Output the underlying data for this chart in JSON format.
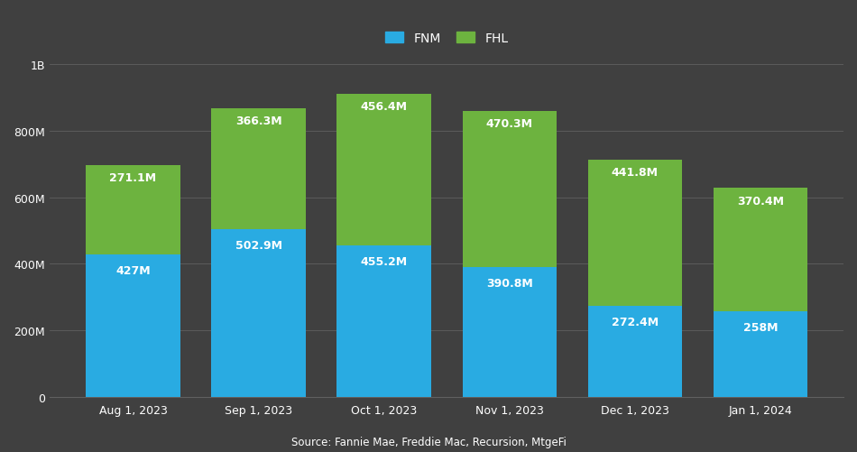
{
  "categories": [
    "Aug 1, 2023",
    "Sep 1, 2023",
    "Oct 1, 2023",
    "Nov 1, 2023",
    "Dec 1, 2023",
    "Jan 1, 2024"
  ],
  "fnm_values": [
    427,
    502.9,
    455.2,
    390.8,
    272.4,
    258
  ],
  "fhl_values": [
    271.1,
    366.3,
    456.4,
    470.3,
    441.8,
    370.4
  ],
  "fnm_color": "#29ABE2",
  "fhl_color": "#6DB33F",
  "background_color": "#404040",
  "text_color": "#FFFFFF",
  "grid_color": "#606060",
  "ylabel_ticks": [
    "0",
    "200M",
    "400M",
    "600M",
    "800M",
    "1B"
  ],
  "ylabel_values": [
    0,
    200,
    400,
    600,
    800,
    1000
  ],
  "ylim": [
    0,
    1050
  ],
  "source_text": "Source: Fannie Mae, Freddie Mac, Recursion, MtgeFi",
  "legend_labels": [
    "FNM",
    "FHL"
  ],
  "bar_width": 0.75,
  "label_fontsize": 9,
  "tick_fontsize": 9
}
